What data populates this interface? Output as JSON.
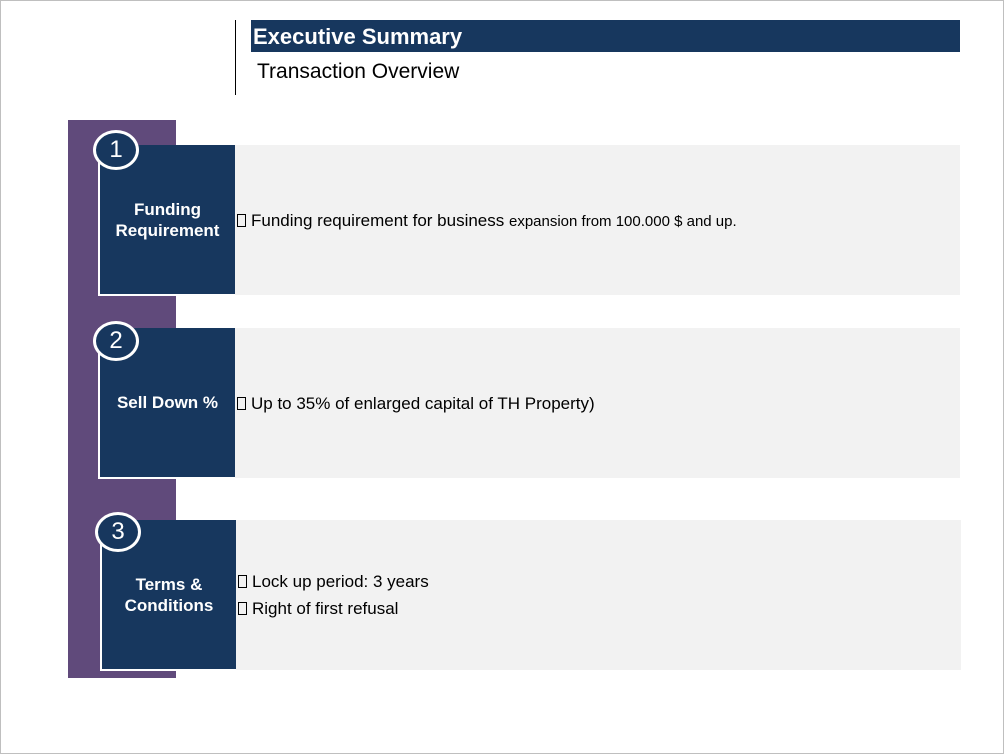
{
  "header": {
    "title": "Executive Summary",
    "subtitle": "Transaction Overview"
  },
  "rows": [
    {
      "number": "1",
      "label": "Funding Requirement",
      "bullets": [
        {
          "main": "Funding requirement for business ",
          "small": "expansion from 100.000 $ and up."
        }
      ]
    },
    {
      "number": "2",
      "label": "Sell Down %",
      "bullets": [
        {
          "main": "Up to 35% of enlarged capital of TH Property)"
        }
      ]
    },
    {
      "number": "3",
      "label": "Terms & Conditions",
      "bullets": [
        {
          "main": "Lock up period: 3 years"
        },
        {
          "main": "Right of first refusal"
        }
      ]
    }
  ],
  "colors": {
    "navy": "#17375e",
    "purple": "#604a7b",
    "content_bg": "#f2f2f2"
  }
}
